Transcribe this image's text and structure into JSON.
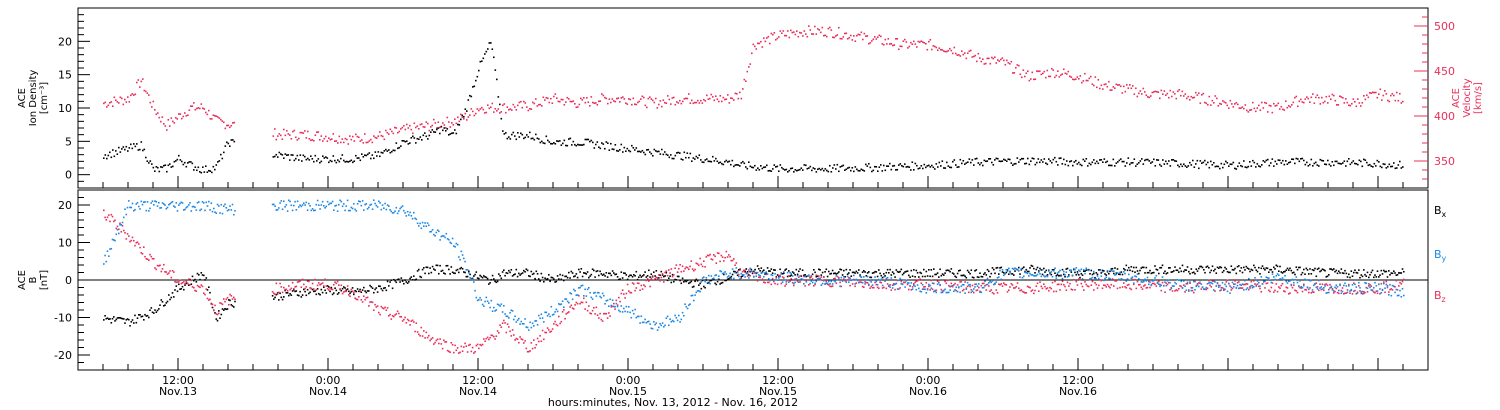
{
  "colors": {
    "black": "#000000",
    "pink": "#e8305a",
    "blue": "#1e88e5"
  },
  "chart_data": [
    {
      "type": "scatter",
      "panel": "top",
      "ylabel": [
        "ACE",
        "Ion Density",
        "[cm⁻³]"
      ],
      "ylim": [
        -2,
        25
      ],
      "yticks": [
        0,
        5,
        10,
        15,
        20
      ],
      "y2label": [
        "ACE",
        "Velocity",
        "[km/s]"
      ],
      "y2lim": [
        320,
        520
      ],
      "y2ticks": [
        350,
        400,
        450,
        500
      ],
      "series": [
        {
          "name": "Ion Density",
          "color": "black",
          "points": [
            [
              6,
              3
            ],
            [
              8,
              4
            ],
            [
              9,
              4.5
            ],
            [
              10,
              0.8
            ],
            [
              11,
              1
            ],
            [
              12,
              2.5
            ],
            [
              13,
              1.5
            ],
            [
              14,
              0.8
            ],
            [
              15,
              1.2
            ],
            [
              16,
              5
            ],
            [
              20,
              3
            ],
            [
              22,
              2.5
            ],
            [
              24,
              2.5
            ],
            [
              26,
              2.5
            ],
            [
              28,
              3
            ],
            [
              30,
              5
            ],
            [
              32,
              6
            ],
            [
              33,
              7
            ],
            [
              34,
              6
            ],
            [
              35,
              10
            ],
            [
              36,
              16
            ],
            [
              37,
              20
            ],
            [
              38,
              6
            ],
            [
              40,
              6
            ],
            [
              42,
              5
            ],
            [
              44,
              5
            ],
            [
              46,
              4.5
            ],
            [
              48,
              4
            ],
            [
              50,
              3.5
            ],
            [
              52,
              3
            ],
            [
              54,
              2.5
            ],
            [
              56,
              2
            ],
            [
              57,
              1.5
            ],
            [
              60,
              1
            ],
            [
              64,
              1
            ],
            [
              68,
              1.2
            ],
            [
              72,
              1.5
            ],
            [
              76,
              2
            ],
            [
              80,
              2.2
            ],
            [
              84,
              2
            ],
            [
              86,
              2
            ],
            [
              88,
              2
            ],
            [
              92,
              1.8
            ],
            [
              96,
              1.5
            ],
            [
              100,
              2
            ],
            [
              104,
              2
            ],
            [
              108,
              1.8
            ],
            [
              110,
              1.5
            ]
          ]
        },
        {
          "name": "Velocity",
          "color": "pink",
          "axis": "right",
          "points": [
            [
              6,
              415
            ],
            [
              8,
              420
            ],
            [
              9,
              440
            ],
            [
              10,
              410
            ],
            [
              11,
              390
            ],
            [
              12,
              400
            ],
            [
              13,
              410
            ],
            [
              14,
              410
            ],
            [
              15,
              395
            ],
            [
              20,
              380
            ],
            [
              22,
              380
            ],
            [
              24,
              378
            ],
            [
              26,
              375
            ],
            [
              28,
              378
            ],
            [
              30,
              385
            ],
            [
              32,
              390
            ],
            [
              34,
              395
            ],
            [
              35,
              400
            ],
            [
              36,
              410
            ],
            [
              38,
              410
            ],
            [
              40,
              412
            ],
            [
              42,
              420
            ],
            [
              44,
              415
            ],
            [
              46,
              420
            ],
            [
              48,
              420
            ],
            [
              50,
              415
            ],
            [
              52,
              420
            ],
            [
              54,
              420
            ],
            [
              56,
              420
            ],
            [
              57,
              425
            ],
            [
              58,
              480
            ],
            [
              60,
              490
            ],
            [
              62,
              495
            ],
            [
              64,
              495
            ],
            [
              66,
              490
            ],
            [
              68,
              485
            ],
            [
              70,
              480
            ],
            [
              72,
              480
            ],
            [
              74,
              475
            ],
            [
              76,
              465
            ],
            [
              78,
              460
            ],
            [
              80,
              445
            ],
            [
              82,
              450
            ],
            [
              84,
              445
            ],
            [
              86,
              435
            ],
            [
              88,
              430
            ],
            [
              90,
              425
            ],
            [
              92,
              425
            ],
            [
              94,
              420
            ],
            [
              96,
              415
            ],
            [
              98,
              410
            ],
            [
              100,
              410
            ],
            [
              102,
              420
            ],
            [
              104,
              420
            ],
            [
              106,
              415
            ],
            [
              108,
              425
            ],
            [
              110,
              420
            ]
          ]
        }
      ]
    },
    {
      "type": "scatter",
      "panel": "bottom",
      "ylabel": [
        "ACE",
        "B",
        "[nT]"
      ],
      "ylim": [
        -24,
        24
      ],
      "yticks": [
        -20,
        -10,
        0,
        10,
        20
      ],
      "legend": [
        {
          "main": "B",
          "sub": "x",
          "color": "black"
        },
        {
          "main": "B",
          "sub": "y",
          "color": "blue"
        },
        {
          "main": "B",
          "sub": "z",
          "color": "pink"
        }
      ],
      "series": [
        {
          "name": "Bx",
          "color": "black",
          "points": [
            [
              6,
              -10
            ],
            [
              8,
              -11
            ],
            [
              10,
              -8
            ],
            [
              12,
              -2
            ],
            [
              14,
              2
            ],
            [
              15,
              -10
            ],
            [
              16,
              -6
            ],
            [
              20,
              -4
            ],
            [
              22,
              -3
            ],
            [
              24,
              -2.5
            ],
            [
              26,
              -3
            ],
            [
              28,
              -2
            ],
            [
              30,
              0
            ],
            [
              32,
              3
            ],
            [
              34,
              3
            ],
            [
              35,
              2
            ],
            [
              37,
              0
            ],
            [
              38,
              2
            ],
            [
              40,
              2
            ],
            [
              42,
              0
            ],
            [
              44,
              2
            ],
            [
              46,
              2
            ],
            [
              48,
              1
            ],
            [
              50,
              2
            ],
            [
              52,
              0
            ],
            [
              54,
              -1
            ],
            [
              56,
              1
            ],
            [
              58,
              3
            ],
            [
              60,
              2
            ],
            [
              64,
              2
            ],
            [
              68,
              2
            ],
            [
              72,
              2
            ],
            [
              76,
              2
            ],
            [
              80,
              3
            ],
            [
              84,
              2
            ],
            [
              86,
              2
            ],
            [
              88,
              3
            ],
            [
              92,
              3
            ],
            [
              96,
              3
            ],
            [
              100,
              3
            ],
            [
              104,
              2
            ],
            [
              108,
              2
            ],
            [
              110,
              2
            ]
          ]
        },
        {
          "name": "By",
          "color": "blue",
          "points": [
            [
              6,
              5
            ],
            [
              8,
              20
            ],
            [
              10,
              20
            ],
            [
              12,
              20
            ],
            [
              14,
              20
            ],
            [
              16,
              19
            ],
            [
              20,
              20
            ],
            [
              22,
              20
            ],
            [
              24,
              20
            ],
            [
              26,
              20
            ],
            [
              28,
              20
            ],
            [
              30,
              19
            ],
            [
              32,
              14
            ],
            [
              34,
              10
            ],
            [
              35,
              4
            ],
            [
              36,
              -5
            ],
            [
              38,
              -8
            ],
            [
              40,
              -12
            ],
            [
              42,
              -8
            ],
            [
              44,
              -2
            ],
            [
              46,
              -5
            ],
            [
              48,
              -8
            ],
            [
              50,
              -12
            ],
            [
              52,
              -10
            ],
            [
              54,
              0
            ],
            [
              56,
              2
            ],
            [
              58,
              2
            ],
            [
              60,
              1
            ],
            [
              64,
              0
            ],
            [
              68,
              0
            ],
            [
              72,
              -2
            ],
            [
              76,
              -2
            ],
            [
              78,
              2
            ],
            [
              80,
              2
            ],
            [
              84,
              2
            ],
            [
              88,
              1
            ],
            [
              92,
              -1
            ],
            [
              96,
              -2
            ],
            [
              100,
              1
            ],
            [
              104,
              -2
            ],
            [
              108,
              -2
            ],
            [
              110,
              -3
            ]
          ]
        },
        {
          "name": "Bz",
          "color": "pink",
          "points": [
            [
              6,
              18
            ],
            [
              8,
              12
            ],
            [
              10,
              5
            ],
            [
              12,
              0
            ],
            [
              14,
              -2
            ],
            [
              15,
              -8
            ],
            [
              16,
              -5
            ],
            [
              20,
              -2
            ],
            [
              22,
              -1
            ],
            [
              24,
              -1
            ],
            [
              26,
              -3
            ],
            [
              28,
              -8
            ],
            [
              30,
              -10
            ],
            [
              32,
              -15
            ],
            [
              34,
              -18
            ],
            [
              36,
              -18
            ],
            [
              38,
              -12
            ],
            [
              40,
              -18
            ],
            [
              42,
              -12
            ],
            [
              44,
              -5
            ],
            [
              46,
              -10
            ],
            [
              48,
              -2
            ],
            [
              50,
              0
            ],
            [
              52,
              3
            ],
            [
              54,
              5
            ],
            [
              56,
              7
            ],
            [
              57,
              2
            ],
            [
              58,
              1
            ],
            [
              60,
              0
            ],
            [
              64,
              0
            ],
            [
              68,
              -1
            ],
            [
              72,
              -1
            ],
            [
              76,
              -2
            ],
            [
              80,
              -2
            ],
            [
              84,
              -1
            ],
            [
              88,
              -1
            ],
            [
              92,
              -2
            ],
            [
              96,
              -1
            ],
            [
              100,
              -2
            ],
            [
              104,
              -2
            ],
            [
              108,
              -2
            ],
            [
              110,
              -1
            ]
          ]
        }
      ]
    }
  ],
  "xaxis": {
    "xlim": [
      4,
      112
    ],
    "label": "hours:minutes, Nov. 13, 2012 - Nov. 16, 2012",
    "ticks": [
      {
        "x": 12,
        "time": "12:00",
        "date": "Nov.13"
      },
      {
        "x": 24,
        "time": "0:00",
        "date": "Nov.14"
      },
      {
        "x": 36,
        "time": "12:00",
        "date": "Nov.14"
      },
      {
        "x": 48,
        "time": "0:00",
        "date": "Nov.15"
      },
      {
        "x": 60,
        "time": "12:00",
        "date": "Nov.15"
      },
      {
        "x": 72,
        "time": "0:00",
        "date": "Nov.16"
      },
      {
        "x": 84,
        "time": "12:00",
        "date": "Nov.16"
      }
    ]
  }
}
